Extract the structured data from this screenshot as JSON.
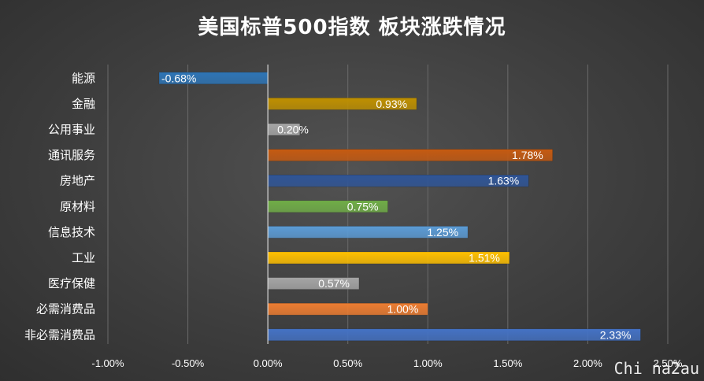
{
  "chart_data": {
    "type": "bar",
    "orientation": "horizontal",
    "title": "美国标普500指数 板块涨跌情况",
    "categories": [
      "能源",
      "金融",
      "公用事业",
      "通讯服务",
      "房地产",
      "原材料",
      "信息技术",
      "工业",
      "医疗保健",
      "必需消费品",
      "非必需消费品"
    ],
    "values": [
      -0.68,
      0.93,
      0.2,
      1.78,
      1.63,
      0.75,
      1.25,
      1.51,
      0.57,
      1.0,
      2.33
    ],
    "data_labels": [
      "-0.68%",
      "0.93%",
      "0.20%",
      "1.78%",
      "1.63%",
      "0.75%",
      "1.25%",
      "1.51%",
      "0.57%",
      "1.00%",
      "2.33%"
    ],
    "colors": [
      "#2e75b6",
      "#bf9000",
      "#a6a6a6",
      "#c55a11",
      "#2f5597",
      "#70ad47",
      "#5b9bd5",
      "#ffc000",
      "#a5a5a5",
      "#ed7d31",
      "#4472c4"
    ],
    "xlim": [
      -1.0,
      2.5
    ],
    "xticks": [
      -1.0,
      -0.5,
      0.0,
      0.5,
      1.0,
      1.5,
      2.0,
      2.5
    ],
    "xtick_labels": [
      "-1.00%",
      "-0.50%",
      "0.00%",
      "0.50%",
      "1.00%",
      "1.50%",
      "2.00%",
      "2.50%"
    ],
    "grid": "vertical",
    "legend": "none"
  },
  "watermark": "Chi na2au"
}
